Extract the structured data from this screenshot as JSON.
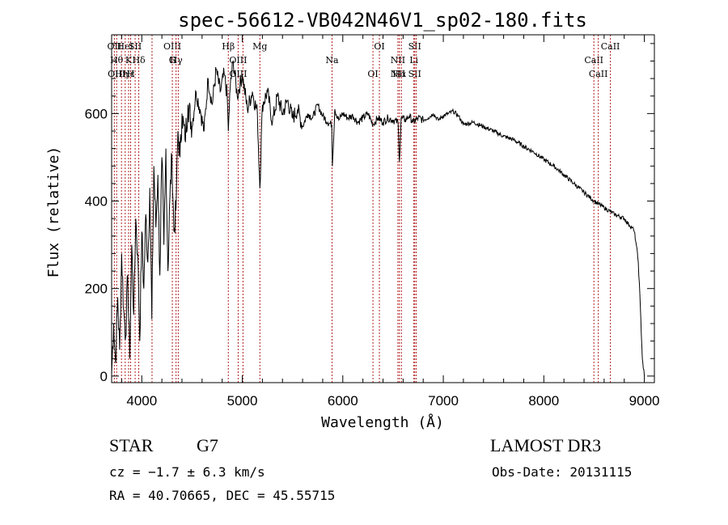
{
  "chart_data": {
    "type": "line",
    "title": "spec-56612-VB042N46V1_sp02-180.fits",
    "xlabel": "Wavelength (Å)",
    "ylabel": "Flux (relative)",
    "xlim": [
      3700,
      9100
    ],
    "ylim": [
      -15,
      780
    ],
    "xticks": [
      4000,
      5000,
      6000,
      7000,
      8000,
      9000
    ],
    "yticks": [
      0,
      200,
      400,
      600
    ],
    "series": [
      {
        "name": "flux",
        "x": [
          3700,
          3720,
          3740,
          3760,
          3780,
          3800,
          3820,
          3840,
          3860,
          3880,
          3900,
          3920,
          3940,
          3960,
          3980,
          4000,
          4020,
          4040,
          4060,
          4080,
          4100,
          4120,
          4140,
          4160,
          4180,
          4200,
          4220,
          4240,
          4260,
          4280,
          4300,
          4320,
          4340,
          4360,
          4380,
          4400,
          4430,
          4460,
          4500,
          4540,
          4580,
          4620,
          4660,
          4700,
          4740,
          4780,
          4820,
          4850,
          4861,
          4880,
          4910,
          4950,
          5000,
          5050,
          5100,
          5150,
          5175,
          5200,
          5250,
          5300,
          5350,
          5400,
          5450,
          5500,
          5550,
          5600,
          5650,
          5700,
          5750,
          5800,
          5850,
          5890,
          5896,
          5920,
          5960,
          6000,
          6050,
          6100,
          6150,
          6200,
          6250,
          6300,
          6350,
          6400,
          6450,
          6500,
          6550,
          6563,
          6580,
          6620,
          6660,
          6700,
          6750,
          6800,
          6850,
          6900,
          6950,
          7000,
          7050,
          7100,
          7150,
          7200,
          7300,
          7400,
          7500,
          7600,
          7700,
          7800,
          7900,
          8000,
          8100,
          8200,
          8300,
          8400,
          8500,
          8600,
          8700,
          8800,
          8850,
          8880,
          8900,
          8920,
          8940,
          8960,
          8980,
          9000
        ],
        "values": [
          5,
          120,
          30,
          180,
          60,
          280,
          150,
          90,
          230,
          40,
          300,
          140,
          360,
          280,
          80,
          330,
          200,
          370,
          260,
          430,
          130,
          480,
          340,
          460,
          230,
          500,
          300,
          520,
          240,
          410,
          500,
          330,
          380,
          560,
          500,
          600,
          540,
          620,
          570,
          650,
          610,
          560,
          680,
          620,
          700,
          650,
          690,
          640,
          560,
          660,
          720,
          640,
          690,
          610,
          650,
          600,
          430,
          620,
          650,
          580,
          640,
          600,
          630,
          590,
          610,
          570,
          600,
          590,
          620,
          595,
          580,
          575,
          480,
          610,
          585,
          600,
          590,
          595,
          580,
          590,
          600,
          575,
          590,
          580,
          590,
          585,
          580,
          490,
          590,
          585,
          595,
          580,
          590,
          585,
          590,
          600,
          585,
          595,
          600,
          605,
          595,
          575,
          580,
          570,
          560,
          548,
          540,
          525,
          512,
          495,
          480,
          460,
          440,
          420,
          400,
          385,
          370,
          360,
          345,
          340,
          330,
          300,
          260,
          160,
          40,
          0
        ]
      }
    ],
    "line_markers": [
      {
        "x": 3727,
        "labels": [
          "OII"
        ]
      },
      {
        "x": 3750,
        "labels": [
          "Hθ",
          "OIII"
        ]
      },
      {
        "x": 3798,
        "labels": [
          "Hη"
        ]
      },
      {
        "x": 3835,
        "labels": [
          "HeI"
        ]
      },
      {
        "x": 3869,
        "labels": [
          "K",
          "Hε"
        ]
      },
      {
        "x": 3889,
        "labels": [
          "H"
        ]
      },
      {
        "x": 3934,
        "labels": [
          "SII"
        ]
      },
      {
        "x": 3970,
        "labels": [
          "Hδ"
        ]
      },
      {
        "x": 4102,
        "labels": []
      },
      {
        "x": 4304,
        "labels": [
          "OIII",
          "G"
        ]
      },
      {
        "x": 4341,
        "labels": [
          "Hγ"
        ]
      },
      {
        "x": 4363,
        "labels": []
      },
      {
        "x": 4861,
        "labels": [
          "Hβ"
        ]
      },
      {
        "x": 4959,
        "labels": [
          "OIII",
          "OIII"
        ]
      },
      {
        "x": 5007,
        "labels": []
      },
      {
        "x": 5175,
        "labels": [
          "Mg"
        ]
      },
      {
        "x": 5893,
        "labels": [
          "Na"
        ]
      },
      {
        "x": 6300,
        "labels": [
          "OI"
        ]
      },
      {
        "x": 6364,
        "labels": [
          "OI"
        ]
      },
      {
        "x": 6548,
        "labels": [
          "NII",
          "NII"
        ]
      },
      {
        "x": 6563,
        "labels": [
          "Hα"
        ]
      },
      {
        "x": 6583,
        "labels": []
      },
      {
        "x": 6707,
        "labels": [
          "Li"
        ]
      },
      {
        "x": 6716,
        "labels": [
          "SII",
          "SII"
        ]
      },
      {
        "x": 6731,
        "labels": []
      },
      {
        "x": 8498,
        "labels": [
          "CaII"
        ]
      },
      {
        "x": 8542,
        "labels": [
          "CaII"
        ]
      },
      {
        "x": 8662,
        "labels": [
          "CaII"
        ]
      }
    ]
  },
  "footer": {
    "class": "STAR",
    "subclass": "G7",
    "survey": "LAMOST DR3",
    "cz": "cz = −1.7 ± 6.3 km/s",
    "obsdate": "Obs-Date: 20131115",
    "radec": "RA =  40.70665, DEC =  45.55715"
  },
  "colors": {
    "marker": "#b22222",
    "ink": "#000000"
  }
}
